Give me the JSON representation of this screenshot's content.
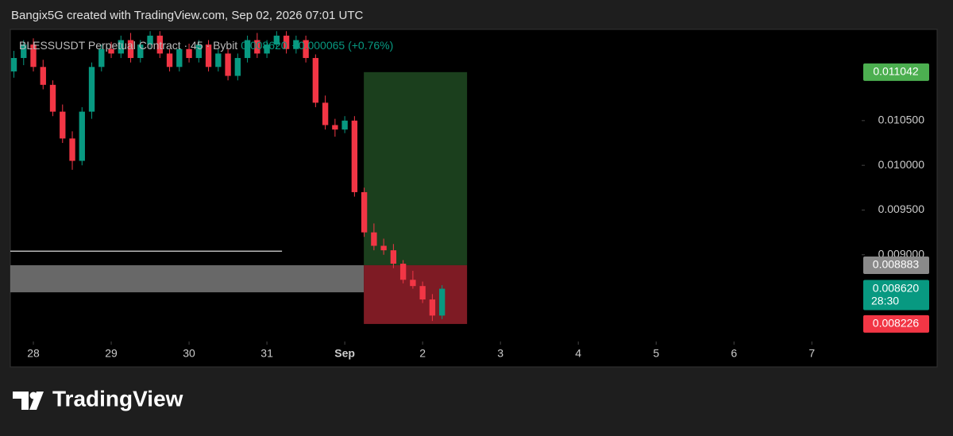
{
  "header": {
    "credit": "Bangix5G created with TradingView.com, Sep 02, 2026 07:01 UTC"
  },
  "footer": {
    "brand": "TradingView"
  },
  "chart_data": {
    "type": "candlestick",
    "symbol": "BLESSUSDT Perpetual Contract · 45 · Bybit",
    "last_price": "0.008620",
    "change": "+0.000065 (+0.76%)",
    "up_color": "#089981",
    "down_color": "#f23645",
    "x": [
      -0.25,
      -0.125,
      0,
      0.125,
      0.25,
      0.375,
      0.5,
      0.625,
      0.75,
      0.875,
      1,
      1.125,
      1.25,
      1.375,
      1.5,
      1.625,
      1.75,
      1.875,
      2,
      2.125,
      2.25,
      2.375,
      2.5,
      2.625,
      2.75,
      2.875,
      3,
      3.125,
      3.25,
      3.375,
      3.5,
      3.625,
      3.75,
      3.875,
      4,
      4.125,
      4.25,
      4.375,
      4.5,
      4.625,
      4.75,
      4.875,
      5,
      5.125,
      5.25
    ],
    "open": [
      0.01105,
      0.0112,
      0.01135,
      0.0111,
      0.0109,
      0.0106,
      0.0103,
      0.01005,
      0.0106,
      0.0111,
      0.0113,
      0.01125,
      0.0114,
      0.0112,
      0.01135,
      0.01145,
      0.01125,
      0.0111,
      0.0113,
      0.0112,
      0.01135,
      0.0111,
      0.01125,
      0.011,
      0.0112,
      0.0114,
      0.01125,
      0.01135,
      0.01145,
      0.0113,
      0.0114,
      0.0112,
      0.0107,
      0.01045,
      0.0104,
      0.0105,
      0.0097,
      0.00925,
      0.0091,
      0.00905,
      0.0089,
      0.00872,
      0.00865,
      0.0085,
      0.00832
    ],
    "high": [
      0.01128,
      0.0114,
      0.01142,
      0.01118,
      0.01095,
      0.01068,
      0.01038,
      0.01065,
      0.01115,
      0.01135,
      0.01138,
      0.01145,
      0.01148,
      0.0114,
      0.0115,
      0.0115,
      0.0113,
      0.01135,
      0.01136,
      0.0114,
      0.0114,
      0.0113,
      0.0113,
      0.01125,
      0.01145,
      0.01148,
      0.0114,
      0.0115,
      0.0115,
      0.01145,
      0.01145,
      0.01124,
      0.01078,
      0.01052,
      0.01055,
      0.01055,
      0.00975,
      0.00935,
      0.00918,
      0.00912,
      0.00894,
      0.00882,
      0.0087,
      0.00856,
      0.00866
    ],
    "low": [
      0.01098,
      0.01112,
      0.01105,
      0.01085,
      0.01055,
      0.01025,
      0.00995,
      0.01,
      0.01052,
      0.01105,
      0.0112,
      0.0112,
      0.01115,
      0.01115,
      0.0113,
      0.0112,
      0.01105,
      0.01105,
      0.01115,
      0.01115,
      0.01105,
      0.01105,
      0.01095,
      0.01095,
      0.01115,
      0.0112,
      0.0112,
      0.0113,
      0.01125,
      0.01125,
      0.01115,
      0.01065,
      0.0104,
      0.01032,
      0.01036,
      0.00965,
      0.0092,
      0.00905,
      0.009,
      0.00885,
      0.00868,
      0.00862,
      0.00846,
      0.00826,
      0.00828
    ],
    "close": [
      0.0112,
      0.01135,
      0.0111,
      0.0109,
      0.0106,
      0.0103,
      0.01005,
      0.0106,
      0.0111,
      0.0113,
      0.01125,
      0.0114,
      0.0112,
      0.01135,
      0.01145,
      0.01125,
      0.0111,
      0.0113,
      0.0112,
      0.01135,
      0.0111,
      0.01125,
      0.011,
      0.0112,
      0.0114,
      0.01125,
      0.01135,
      0.01145,
      0.0113,
      0.0114,
      0.0112,
      0.0107,
      0.01045,
      0.0104,
      0.0105,
      0.0097,
      0.00925,
      0.0091,
      0.00905,
      0.0089,
      0.00872,
      0.00865,
      0.0085,
      0.00832,
      0.00862
    ],
    "xlim": [
      -0.296,
      10.64
    ],
    "ylim": [
      0.00803,
      0.01152
    ],
    "xticks": [
      {
        "value": 0,
        "label": "28"
      },
      {
        "value": 1,
        "label": "29"
      },
      {
        "value": 2,
        "label": "30"
      },
      {
        "value": 3,
        "label": "31"
      },
      {
        "value": 4,
        "label": "Sep"
      },
      {
        "value": 5,
        "label": "2"
      },
      {
        "value": 6,
        "label": "3"
      },
      {
        "value": 7,
        "label": "4"
      },
      {
        "value": 8,
        "label": "5"
      },
      {
        "value": 9,
        "label": "6"
      },
      {
        "value": 10,
        "label": "7"
      }
    ],
    "yticks": [
      {
        "value": 0.009,
        "label": "0.009000"
      },
      {
        "value": 0.0095,
        "label": "0.009500"
      },
      {
        "value": 0.01,
        "label": "0.010000"
      },
      {
        "value": 0.0105,
        "label": "0.010500"
      }
    ],
    "position": {
      "x_start": 4.245,
      "x_end": 5.571,
      "target": 0.011042,
      "entry": 0.008883,
      "stop": 0.008226,
      "profit_color": "#1e4620",
      "loss_color": "#8c1e28"
    },
    "zone": {
      "top": 0.008883,
      "bottom": 0.00858,
      "x_end": 4.245,
      "color": "#7a7a7a"
    },
    "level_line": {
      "value": 0.00904,
      "x_end": 3.194
    },
    "price_tags": [
      {
        "value": 0.011042,
        "label": "0.011042",
        "color": "#4caf50"
      },
      {
        "value": 0.008883,
        "label": "0.008883",
        "color": "#8a8a8a"
      },
      {
        "value": 0.00862,
        "label": "0.008620",
        "color": "#089981",
        "countdown": "28:30"
      },
      {
        "value": 0.008226,
        "label": "0.008226",
        "color": "#f23645"
      }
    ]
  }
}
